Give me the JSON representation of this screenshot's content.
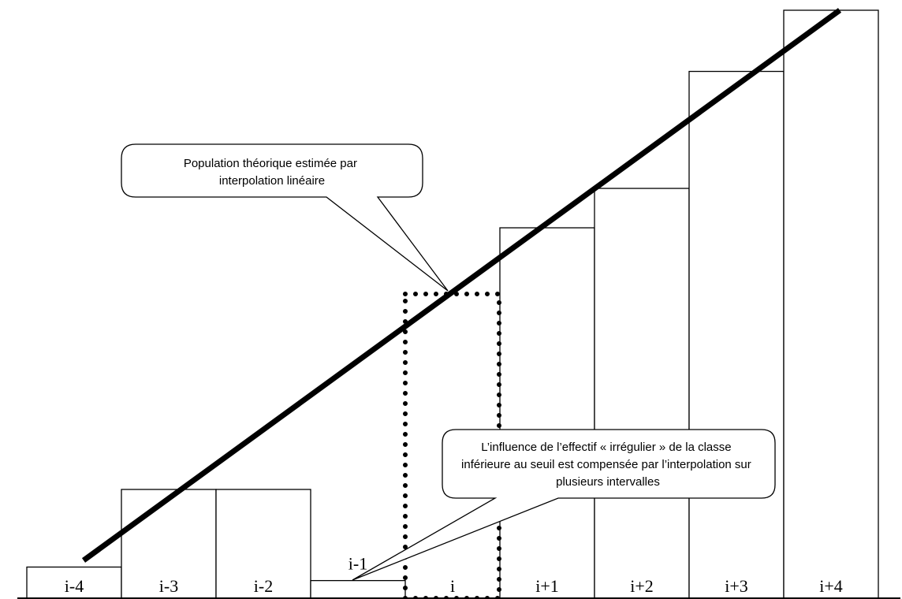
{
  "bars": [
    {
      "label": "i-4",
      "relative_height": 0.053
    },
    {
      "label": "i-3",
      "relative_height": 0.185
    },
    {
      "label": "i-2",
      "relative_height": 0.185
    },
    {
      "label": "i-1",
      "relative_height": 0.03,
      "label_above": true
    },
    {
      "label": "i",
      "relative_height": 0.0
    },
    {
      "label": "i+1",
      "relative_height": 0.63
    },
    {
      "label": "i+2",
      "relative_height": 0.697
    },
    {
      "label": "i+3",
      "relative_height": 0.896
    },
    {
      "label": "i+4",
      "relative_height": 1.0
    }
  ],
  "highlighted_class": "i",
  "callouts": {
    "top": {
      "lines": [
        "Population théorique estimée par",
        "interpolation linéaire"
      ]
    },
    "bottom": {
      "lines": [
        "L’influence de l’effectif « irrégulier » de la classe",
        "inférieure au seuil est compensée par l’interpolation sur",
        "plusieurs intervalles"
      ]
    }
  },
  "colors": {
    "stroke": "#000000",
    "background": "#ffffff"
  }
}
